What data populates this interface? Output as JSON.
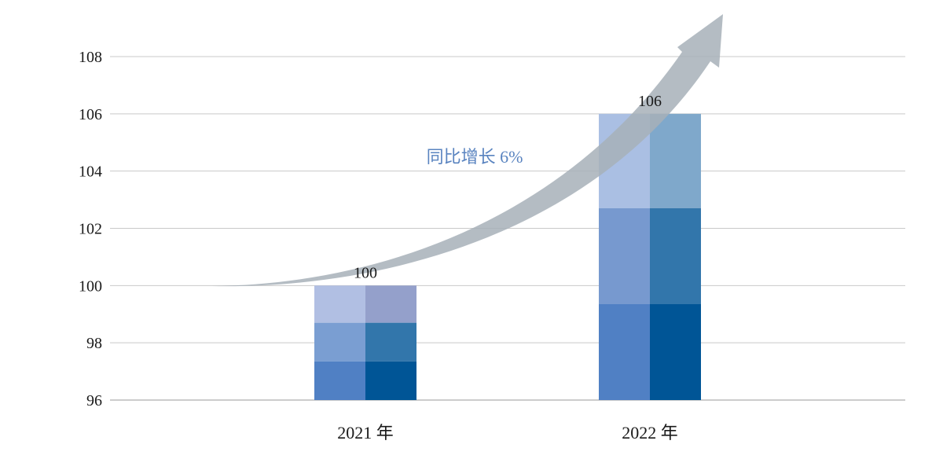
{
  "chart_data": {
    "type": "bar",
    "categories": [
      "2021 年",
      "2022 年"
    ],
    "values": [
      100,
      106
    ],
    "data_labels": [
      "100",
      "106"
    ],
    "ylim": [
      96,
      108
    ],
    "yticks": [
      96,
      98,
      100,
      102,
      104,
      106,
      108
    ],
    "grid": true,
    "stack_breaks": [
      [
        [
          98.7,
          97.35
        ],
        [
          98.7,
          97.35
        ]
      ],
      [
        [
          102.7,
          99.35
        ],
        [
          102.7,
          99.35
        ]
      ]
    ],
    "segment_colors": [
      [
        [
          "#b1bfe3",
          "#7a9ed2",
          "#5080c4"
        ],
        [
          "#94a0cb",
          "#3276ab",
          "#005596"
        ]
      ],
      [
        [
          "#aabfe3",
          "#7799cf",
          "#5080c4"
        ],
        [
          "#7fa8cb",
          "#3276ab",
          "#005596"
        ]
      ]
    ],
    "annotation": {
      "text": "同比增长 6%",
      "color": "#5a84c0",
      "arrow_color": "#a7b0b8"
    }
  }
}
